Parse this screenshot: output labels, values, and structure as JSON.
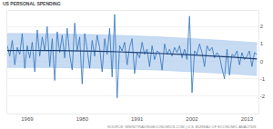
{
  "chart_data": {
    "type": "line",
    "title": "US PERSONAL SPENDING",
    "annotations": [
      "SOURCE: WWW.TRADINGECONOMICS.COM | U.S. BUREAU OF ECONOMIC ANALYSIS"
    ],
    "xlim": [
      1965,
      2015.3
    ],
    "xticks": [
      1969,
      1980,
      1991,
      2002,
      2013
    ],
    "ylim": [
      -3,
      2.9
    ],
    "yticks": [
      -2,
      -1,
      0,
      1,
      2
    ],
    "grid": true,
    "x": [
      1965.0,
      1965.5,
      1966.0,
      1966.5,
      1967.0,
      1967.5,
      1968.0,
      1968.5,
      1969.0,
      1969.5,
      1970.0,
      1970.5,
      1971.0,
      1971.5,
      1972.0,
      1972.5,
      1973.0,
      1973.5,
      1974.0,
      1974.5,
      1975.0,
      1975.5,
      1976.0,
      1976.5,
      1977.0,
      1977.5,
      1978.0,
      1978.5,
      1979.0,
      1979.5,
      1980.0,
      1980.5,
      1981.0,
      1981.5,
      1982.0,
      1982.5,
      1983.0,
      1983.5,
      1984.0,
      1984.5,
      1985.0,
      1985.5,
      1986.0,
      1986.5,
      1987.0,
      1987.5,
      1988.0,
      1988.5,
      1989.0,
      1989.5,
      1990.0,
      1990.5,
      1991.0,
      1991.5,
      1992.0,
      1992.5,
      1993.0,
      1993.5,
      1994.0,
      1994.5,
      1995.0,
      1995.5,
      1996.0,
      1996.5,
      1997.0,
      1997.5,
      1998.0,
      1998.5,
      1999.0,
      1999.5,
      2000.0,
      2000.5,
      2001.0,
      2001.5,
      2002.0,
      2002.5,
      2003.0,
      2003.5,
      2004.0,
      2004.5,
      2005.0,
      2005.5,
      2006.0,
      2006.5,
      2007.0,
      2007.5,
      2008.0,
      2008.5,
      2009.0,
      2009.5,
      2010.0,
      2010.5,
      2011.0,
      2011.5,
      2012.0,
      2012.5,
      2013.0,
      2013.5,
      2014.0,
      2014.5,
      2015.0
    ],
    "series": [
      {
        "type": "band",
        "color": "#a9c8ec",
        "x": [
          1965,
          1970,
          1975,
          1980,
          1985,
          1990,
          1995,
          2000,
          2005,
          2010,
          2015
        ],
        "values": [
          -0.35,
          -0.35,
          -0.36,
          -0.38,
          -0.41,
          -0.45,
          -0.5,
          -0.57,
          -0.64,
          -0.72,
          -0.82
        ]
      },
      {
        "type": "band",
        "color": "#a9c8ec",
        "x": [
          1965,
          1970,
          1975,
          1980,
          1985,
          1990,
          1995,
          2000,
          2005,
          2010,
          2015
        ],
        "values": [
          1.6,
          1.6,
          1.58,
          1.55,
          1.52,
          1.47,
          1.41,
          1.34,
          1.26,
          1.17,
          1.07
        ]
      },
      {
        "type": "line",
        "color": "#2f73bd",
        "values": [
          0.9,
          0.3,
          1.2,
          -0.2,
          0.8,
          0.4,
          1.6,
          -0.4,
          0.9,
          0.2,
          1.1,
          -0.6,
          1.8,
          0.3,
          1.4,
          0.6,
          2.0,
          -0.3,
          1.3,
          -1.1,
          1.7,
          0.5,
          1.5,
          0.2,
          1.9,
          0.4,
          -0.5,
          2.2,
          0.6,
          1.4,
          -1.3,
          1.6,
          0.7,
          -0.4,
          1.2,
          0.3,
          1.5,
          0.8,
          -0.6,
          1.3,
          0.4,
          1.9,
          -0.9,
          2.7,
          -2.1,
          0.9,
          0.6,
          1.1,
          -0.2,
          0.8,
          1.3,
          -0.7,
          0.5,
          0.2,
          1.1,
          0.4,
          0.7,
          -0.3,
          0.9,
          0.1,
          0.6,
          0.5,
          -0.5,
          1.0,
          0.4,
          0.7,
          0.3,
          0.8,
          0.5,
          0.9,
          0.2,
          0.7,
          0.1,
          2.6,
          -1.8,
          0.6,
          0.4,
          1.0,
          0.5,
          -0.3,
          0.9,
          0.6,
          0.8,
          0.2,
          0.5,
          0.3,
          -0.4,
          -1.0,
          0.7,
          -0.8,
          0.4,
          0.3,
          0.6,
          -0.2,
          0.5,
          0.1,
          0.3,
          0.6,
          -0.3,
          0.5,
          0.4
        ]
      },
      {
        "type": "line",
        "color": "#1b3f73",
        "x": [
          1965,
          1970,
          1975,
          1980,
          1985,
          1990,
          1995,
          2000,
          2005,
          2010,
          2015
        ],
        "values": [
          0.62,
          0.63,
          0.62,
          0.6,
          0.57,
          0.52,
          0.46,
          0.4,
          0.32,
          0.24,
          0.14
        ]
      }
    ]
  }
}
